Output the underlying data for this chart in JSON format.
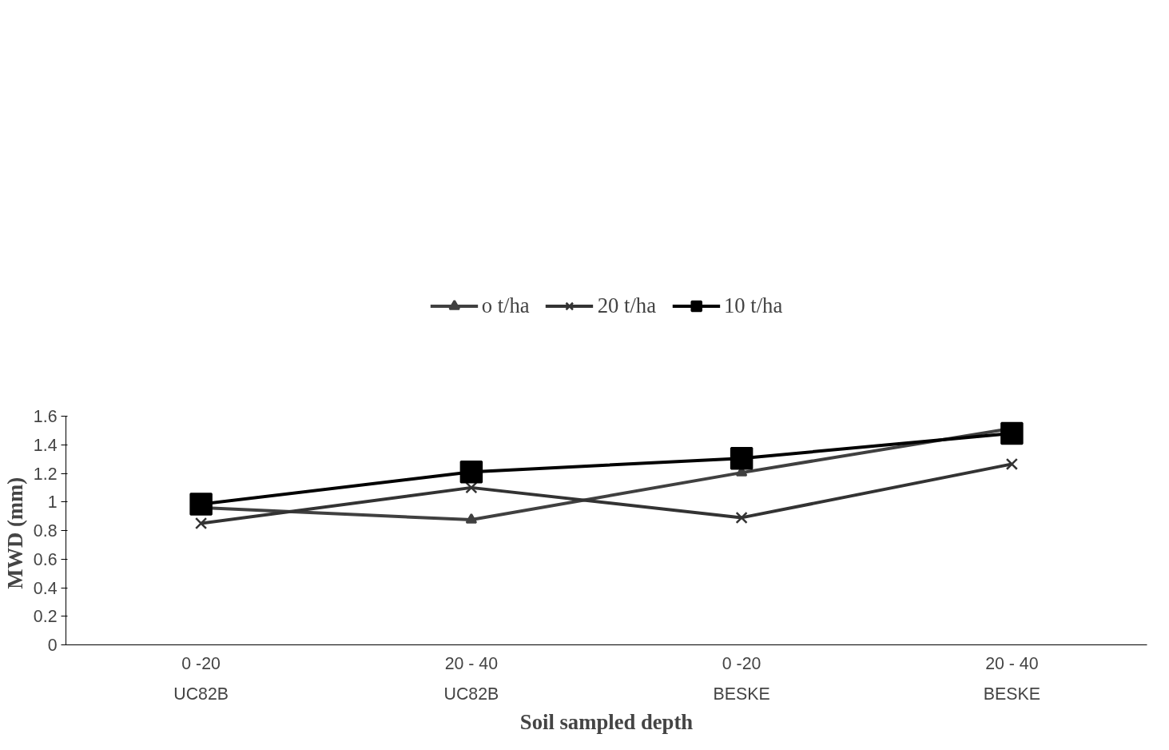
{
  "chart_data": {
    "type": "line",
    "xlabel": "Soil sampled depth",
    "ylabel": "MWD  (mm)",
    "categories": [
      "0 -20\nUC82B",
      "20 - 40\nUC82B",
      "0 -20\nBESKE",
      "20 - 40\nBESKE"
    ],
    "series": [
      {
        "name": "o t/ha",
        "color": "#404040",
        "marker": "triangle",
        "values": [
          0.96,
          0.875,
          1.205,
          1.515
        ]
      },
      {
        "name": "20 t/ha",
        "color": "#333333",
        "marker": "cross",
        "values": [
          0.85,
          1.1,
          0.89,
          1.265
        ]
      },
      {
        "name": "10 t/ha",
        "color": "#000000",
        "marker": "square",
        "values": [
          0.985,
          1.21,
          1.305,
          1.48
        ]
      }
    ],
    "ylim": [
      0,
      1.6
    ],
    "yticks": [
      0,
      0.2,
      0.4,
      0.6,
      0.8,
      1,
      1.2,
      1.4,
      1.6
    ],
    "grid": false,
    "legend": "top"
  }
}
